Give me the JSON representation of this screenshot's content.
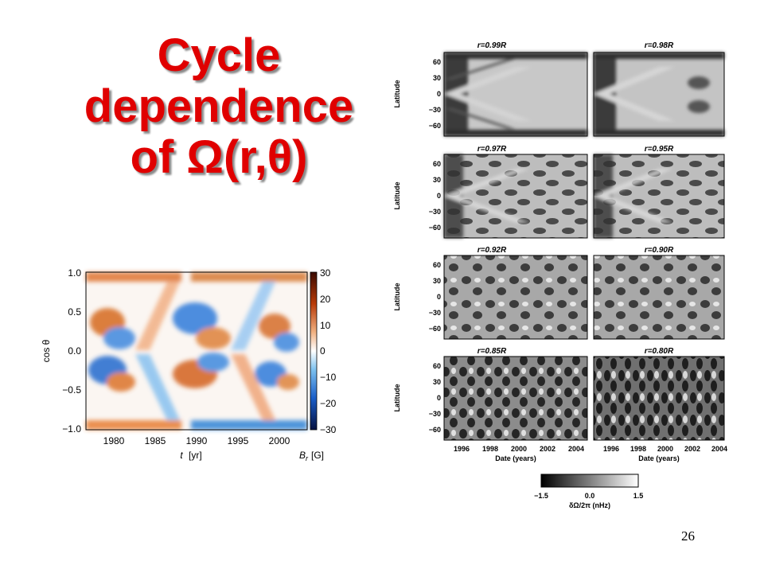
{
  "slide": {
    "title_lines": [
      "Cycle",
      "dependence",
      "of Ω(r,θ)"
    ],
    "page_number": "26"
  },
  "butterfly": {
    "ylabel": "cos θ",
    "xlabel_symbol": "t",
    "xlabel_unit": "[yr]",
    "colorbar_label_symbol": "B",
    "colorbar_label_sub": "r",
    "colorbar_label_unit": "[G]",
    "yticks": [
      "1.0",
      "0.5",
      "0.0",
      "−0.5",
      "−1.0"
    ],
    "xticks": [
      "1980",
      "1985",
      "1990",
      "1995",
      "2000"
    ],
    "colorbar_ticks": [
      "30",
      "20",
      "10",
      "0",
      "−10",
      "−20",
      "−30"
    ]
  },
  "rotation": {
    "panels": [
      {
        "label": "r=0.99R"
      },
      {
        "label": "r=0.98R"
      },
      {
        "label": "r=0.97R"
      },
      {
        "label": "r=0.95R"
      },
      {
        "label": "r=0.92R"
      },
      {
        "label": "r=0.90R"
      },
      {
        "label": "r=0.85R"
      },
      {
        "label": "r=0.80R"
      }
    ],
    "ylabel": "Latitude",
    "yticks": [
      "60",
      "30",
      "0",
      "−30",
      "−60"
    ],
    "xticks": [
      "1996",
      "1998",
      "2000",
      "2002",
      "2004"
    ],
    "xlabel": "Date (years)",
    "colorbar_ticks": [
      "−1.5",
      "0.0",
      "1.5"
    ],
    "colorbar_label": "δΩ/2π (nHz)"
  }
}
